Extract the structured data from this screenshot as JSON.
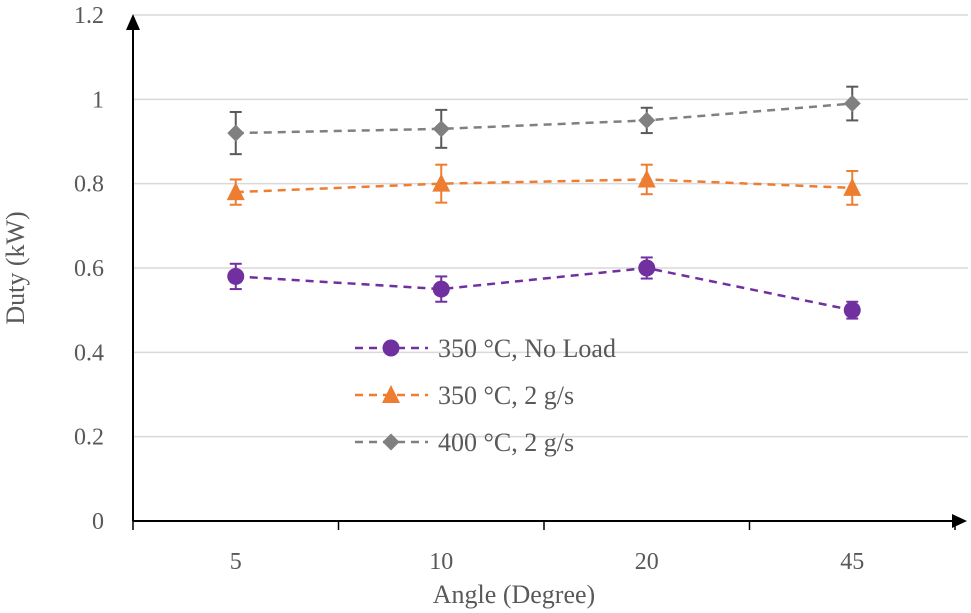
{
  "chart_data": {
    "type": "line",
    "title": "",
    "xlabel": "Angle (Degree)",
    "ylabel": "Duty (kW)",
    "categories": [
      "5",
      "10",
      "20",
      "45"
    ],
    "ylim": [
      0,
      1.2
    ],
    "yticks": [
      "0",
      "0.2",
      "0.4",
      "0.6",
      "0.8",
      "1",
      "1.2"
    ],
    "ytick_values": [
      0,
      0.2,
      0.4,
      0.6,
      0.8,
      1.0,
      1.2
    ],
    "grid": true,
    "legend_position": "lower-middle",
    "series": [
      {
        "name": "350 °C,  No Load",
        "marker": "circle",
        "color": "#7030A0",
        "errbar_color": "#7030A0",
        "values": [
          0.58,
          0.55,
          0.6,
          0.5
        ],
        "errors": [
          0.03,
          0.03,
          0.025,
          0.02
        ]
      },
      {
        "name": "350 °C,  2 g/s",
        "marker": "triangle",
        "color": "#ED7D31",
        "errbar_color": "#ED7D31",
        "values": [
          0.78,
          0.8,
          0.81,
          0.79
        ],
        "errors": [
          0.03,
          0.045,
          0.035,
          0.04
        ]
      },
      {
        "name": "400 °C,  2 g/s",
        "marker": "diamond",
        "color": "#808080",
        "errbar_color": "#595959",
        "values": [
          0.92,
          0.93,
          0.95,
          0.99
        ],
        "errors": [
          0.05,
          0.045,
          0.03,
          0.04
        ]
      }
    ]
  }
}
